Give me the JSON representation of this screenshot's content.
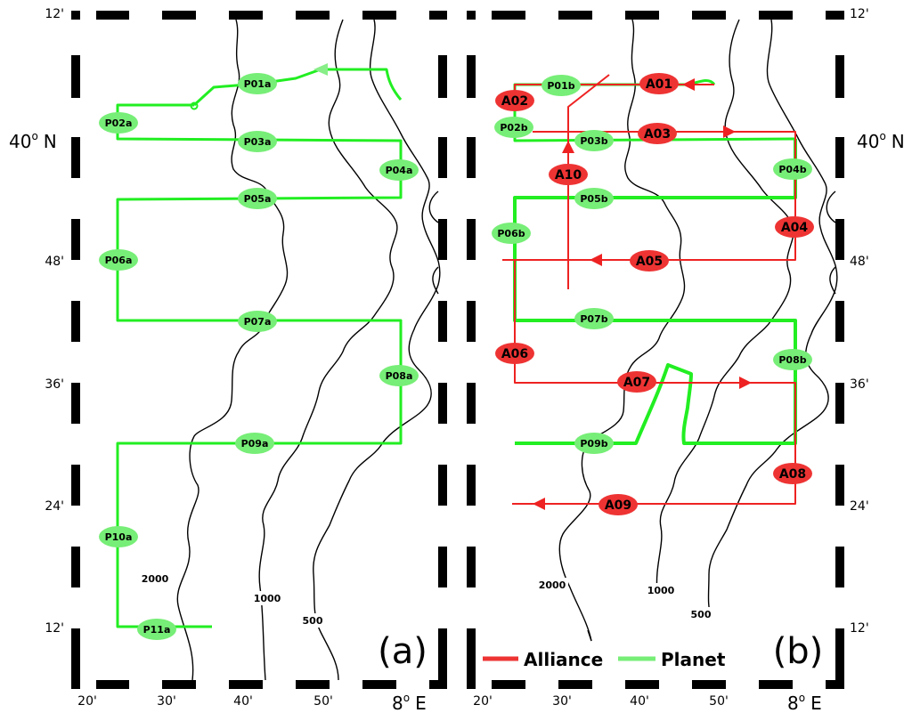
{
  "axes": {
    "lat_labels": [
      "12'",
      "24'",
      "36'",
      "48'",
      "40° N",
      "12'"
    ],
    "lon_labels": [
      "20'",
      "30'",
      "40'",
      "50'",
      "8° E"
    ],
    "lat_top": "12'",
    "lat_40n_deg": "40",
    "lat_40n_o": "o",
    "lat_40n_n": "N",
    "lat_48": "48'",
    "lat_36": "36'",
    "lat_24": "24'",
    "lat_12_bottom": "12'",
    "lon_20": "20'",
    "lon_30": "30'",
    "lon_40": "40'",
    "lon_50": "50'",
    "lon_8e_deg": "8",
    "lon_8e_o": "o",
    "lon_8e_e": "E"
  },
  "panels": {
    "a": {
      "label": "(a)",
      "stations": [
        "P01a",
        "P02a",
        "P03a",
        "P04a",
        "P05a",
        "P06a",
        "P07a",
        "P08a",
        "P09a",
        "P10a",
        "P11a"
      ]
    },
    "b": {
      "label": "(b)",
      "planet_stations": [
        "P01b",
        "P02b",
        "P03b",
        "P04b",
        "P05b",
        "P06b",
        "P07b",
        "P08b",
        "P09b"
      ],
      "alliance_stations": [
        "A01",
        "A02",
        "A03",
        "A04",
        "A05",
        "A06",
        "A07",
        "A08",
        "A09",
        "A10"
      ]
    }
  },
  "contours": {
    "a": [
      "2000",
      "1000",
      "500"
    ],
    "b": [
      "2000",
      "1000",
      "500"
    ]
  },
  "legend": {
    "alliance": "Alliance",
    "planet": "Planet"
  },
  "colors": {
    "planet": "#22ee22",
    "planet_label": "#77ee77",
    "alliance": "#ee2222",
    "alliance_label": "#ee3333"
  }
}
